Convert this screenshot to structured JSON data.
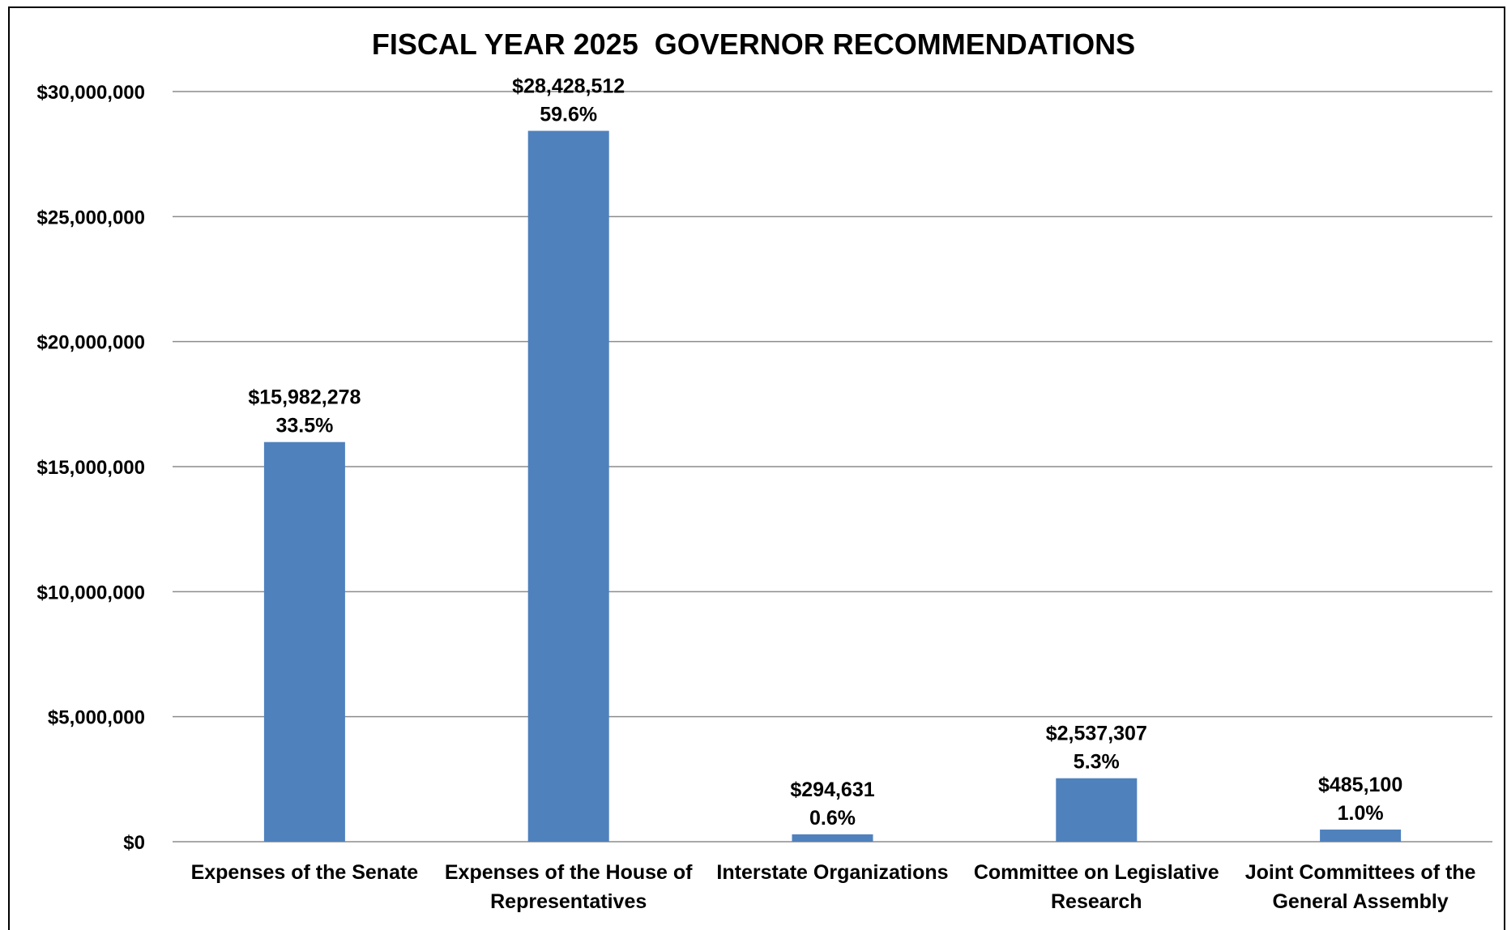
{
  "chart_data": {
    "type": "bar",
    "title": "FISCAL YEAR 2025  GOVERNOR RECOMMENDATIONS",
    "xlabel": "",
    "ylabel": "",
    "categories": [
      "Expenses of the Senate",
      "Expenses of the House of Representatives",
      "Interstate Organizations",
      "Committee on Legislative Research",
      "Joint Committees of the General Assembly"
    ],
    "category_lines": [
      [
        "Expenses of the Senate"
      ],
      [
        "Expenses of the House of",
        "Representatives"
      ],
      [
        "Interstate Organizations"
      ],
      [
        "Committee on Legislative",
        "Research"
      ],
      [
        "Joint Committees of the",
        "General Assembly"
      ]
    ],
    "values": [
      15982278,
      28428512,
      294631,
      2537307,
      485100
    ],
    "value_labels": [
      "$15,982,278",
      "$28,428,512",
      "$294,631",
      "$2,537,307",
      "$485,100"
    ],
    "percent_labels": [
      "33.5%",
      "59.6%",
      "0.6%",
      "5.3%",
      "1.0%"
    ],
    "ylim": [
      0,
      30000000
    ],
    "yticks": [
      0,
      5000000,
      10000000,
      15000000,
      20000000,
      25000000,
      30000000
    ],
    "ytick_labels": [
      "$0",
      "$5,000,000",
      "$10,000,000",
      "$15,000,000",
      "$20,000,000",
      "$25,000,000",
      "$30,000,000"
    ],
    "grid": true,
    "legend": "none",
    "colors": {
      "bar": "#4f81bd",
      "grid": "#8c8c8c",
      "text": "#000000"
    }
  }
}
